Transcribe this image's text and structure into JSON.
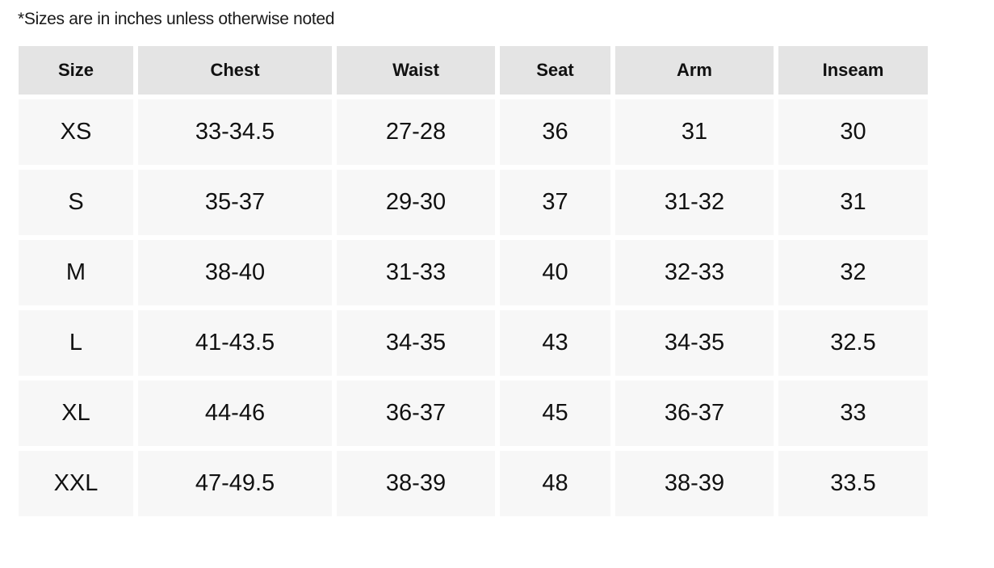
{
  "note": "*Sizes are in inches unless otherwise noted",
  "table": {
    "headers": [
      "Size",
      "Chest",
      "Waist",
      "Seat",
      "Arm",
      "Inseam"
    ],
    "rows": [
      [
        "XS",
        "33-34.5",
        "27-28",
        "36",
        "31",
        "30"
      ],
      [
        "S",
        "35-37",
        "29-30",
        "37",
        "31-32",
        "31"
      ],
      [
        "M",
        "38-40",
        "31-33",
        "40",
        "32-33",
        "32"
      ],
      [
        "L",
        "41-43.5",
        "34-35",
        "43",
        "34-35",
        "32.5"
      ],
      [
        "XL",
        "44-46",
        "36-37",
        "45",
        "36-37",
        "33"
      ],
      [
        "XXL",
        "47-49.5",
        "38-39",
        "48",
        "38-39",
        "33.5"
      ]
    ]
  }
}
